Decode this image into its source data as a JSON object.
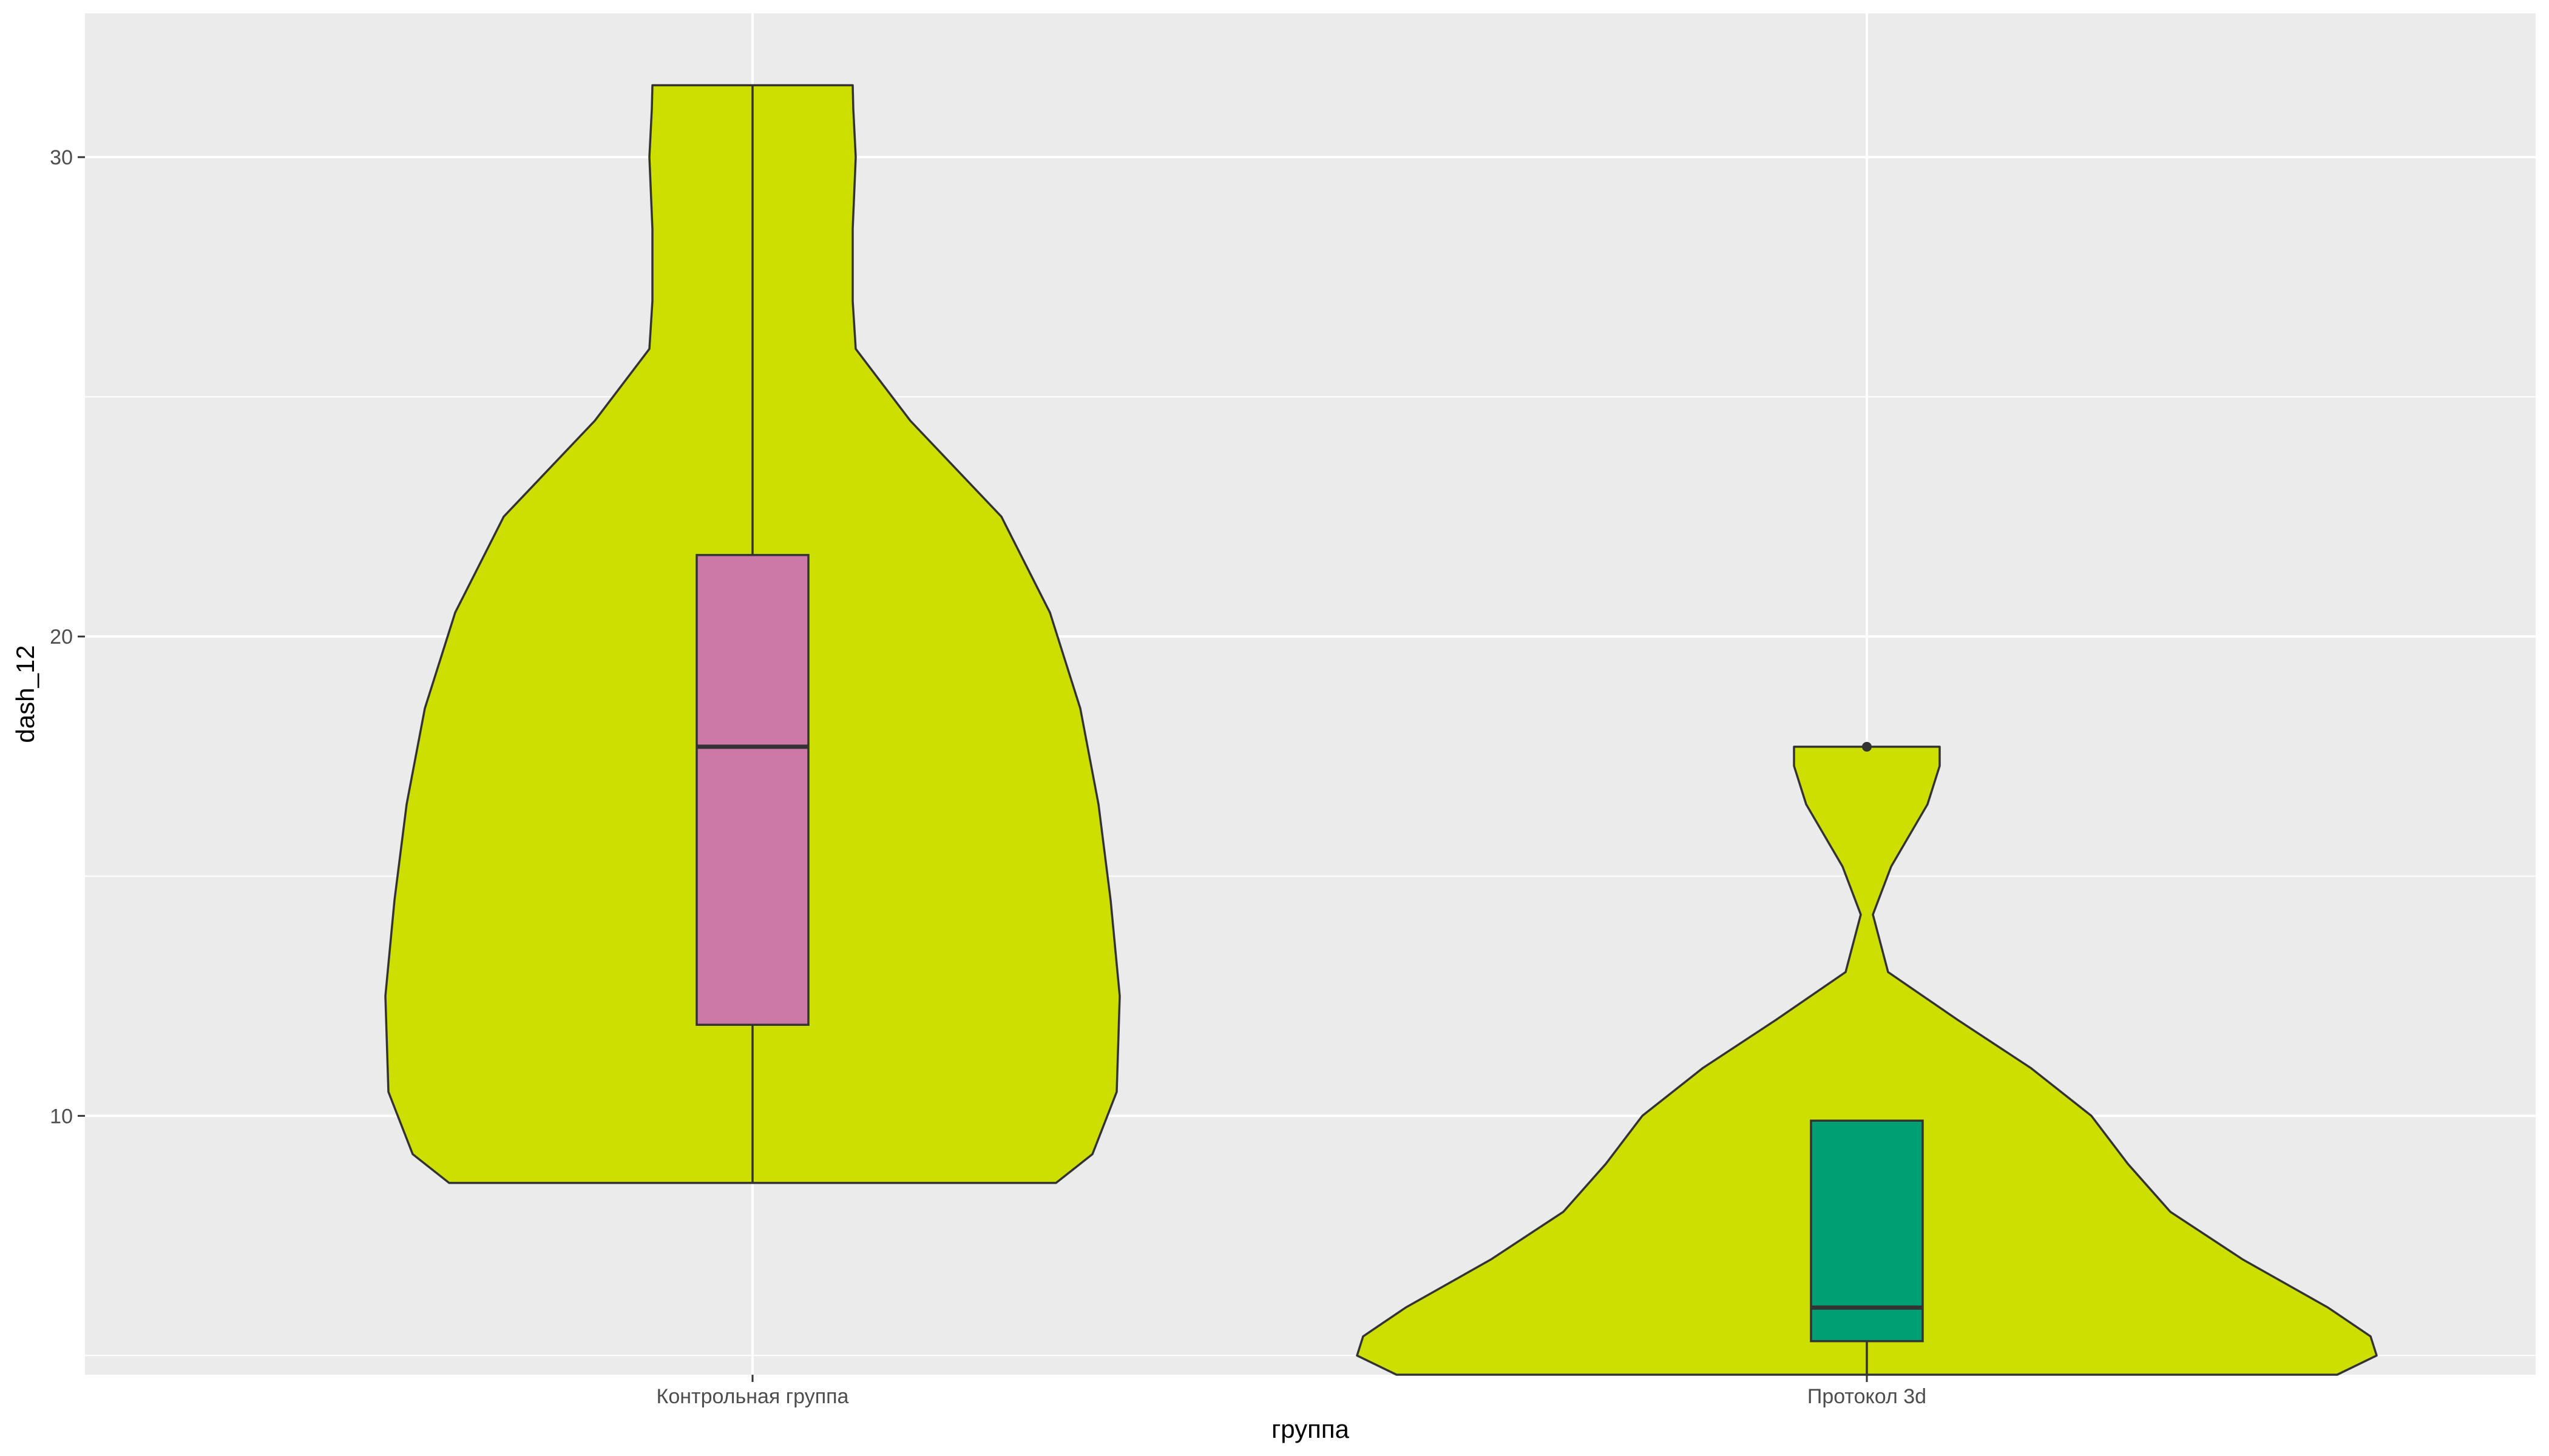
{
  "chart_data": {
    "type": "violin",
    "xlabel": "группа",
    "ylabel": "dash_12",
    "categories": [
      "Контрольная группа",
      "Протокол 3d"
    ],
    "ylim": [
      4.6,
      33.0
    ],
    "yticks": [
      10,
      20,
      30
    ],
    "grid": true,
    "legend": "none",
    "colors": {
      "panel_background": "#EBEBEB",
      "grid": "#FFFFFF",
      "violin_fill": "#CDDF00",
      "outline": "#333333",
      "tick_text": "#4D4D4D"
    },
    "groups": [
      {
        "category": "Контрольная группа",
        "violin_color": "#CDDF00",
        "box_color": "#CC79A7",
        "box": {
          "whisker_low": 8.6,
          "q1": 11.9,
          "median": 17.7,
          "q3": 21.7,
          "whisker_high": 31.5
        },
        "outliers": [],
        "density": [
          {
            "y": 8.6,
            "w": 0.5
          },
          {
            "y": 9.2,
            "w": 0.56
          },
          {
            "y": 10.5,
            "w": 0.6
          },
          {
            "y": 12.5,
            "w": 0.605
          },
          {
            "y": 14.5,
            "w": 0.59
          },
          {
            "y": 16.5,
            "w": 0.57
          },
          {
            "y": 18.5,
            "w": 0.54
          },
          {
            "y": 20.5,
            "w": 0.49
          },
          {
            "y": 22.5,
            "w": 0.41
          },
          {
            "y": 24.5,
            "w": 0.26
          },
          {
            "y": 26.0,
            "w": 0.17
          },
          {
            "y": 27.0,
            "w": 0.165
          },
          {
            "y": 28.5,
            "w": 0.165
          },
          {
            "y": 30.0,
            "w": 0.17
          },
          {
            "y": 31.0,
            "w": 0.166
          },
          {
            "y": 31.5,
            "w": 0.165
          }
        ]
      },
      {
        "category": "Протокол 3d",
        "violin_color": "#CDDF00",
        "box_color": "#009E73",
        "box": {
          "whisker_low": 4.6,
          "q1": 5.3,
          "median": 6.0,
          "q3": 9.9,
          "whisker_high": 9.9
        },
        "outliers": [
          17.7
        ],
        "density": [
          {
            "y": 4.6,
            "w": 0.775
          },
          {
            "y": 5.0,
            "w": 0.84
          },
          {
            "y": 5.4,
            "w": 0.83
          },
          {
            "y": 6.0,
            "w": 0.76
          },
          {
            "y": 7.0,
            "w": 0.62
          },
          {
            "y": 8.0,
            "w": 0.5
          },
          {
            "y": 9.0,
            "w": 0.43
          },
          {
            "y": 10.0,
            "w": 0.37
          },
          {
            "y": 11.0,
            "w": 0.27
          },
          {
            "y": 12.0,
            "w": 0.15
          },
          {
            "y": 13.0,
            "w": 0.035
          },
          {
            "y": 14.2,
            "w": 0.01
          },
          {
            "y": 15.2,
            "w": 0.04
          },
          {
            "y": 16.5,
            "w": 0.1
          },
          {
            "y": 17.3,
            "w": 0.12
          },
          {
            "y": 17.7,
            "w": 0.12
          }
        ]
      }
    ]
  }
}
